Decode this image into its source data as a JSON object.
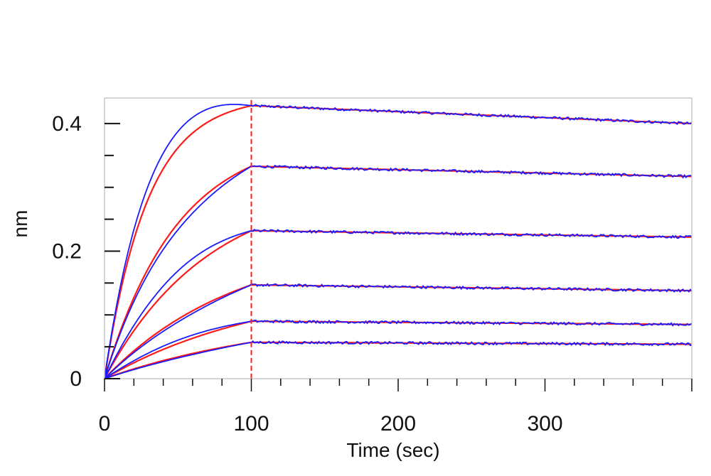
{
  "chart_data": {
    "type": "line",
    "title": "",
    "xlabel": "Time (sec)",
    "ylabel": "nm",
    "xlim": [
      0,
      400
    ],
    "ylim": [
      0,
      0.44
    ],
    "x_ticks": [
      0,
      100,
      200,
      300
    ],
    "y_ticks": [
      0,
      0.2,
      0.4
    ],
    "x_tick_labels": [
      "0",
      "100",
      "200",
      "300"
    ],
    "y_tick_labels": [
      "0",
      "0.2",
      "0.4"
    ],
    "association_end": 100,
    "grid": false,
    "legend": "none",
    "colors": {
      "measured": "#1a1aff",
      "fit": "#ff1a1a",
      "frame": "#c8c8c8"
    },
    "curves": [
      {
        "plateau_end_of_association": 0.428,
        "end_value": 0.4,
        "rate": 0.034
      },
      {
        "plateau_end_of_association": 0.333,
        "end_value": 0.317,
        "rate": 0.02
      },
      {
        "plateau_end_of_association": 0.232,
        "end_value": 0.222,
        "rate": 0.014
      },
      {
        "plateau_end_of_association": 0.147,
        "end_value": 0.138,
        "rate": 0.011
      },
      {
        "plateau_end_of_association": 0.09,
        "end_value": 0.085,
        "rate": 0.009
      },
      {
        "plateau_end_of_association": 0.057,
        "end_value": 0.054,
        "rate": 0.008
      }
    ]
  }
}
